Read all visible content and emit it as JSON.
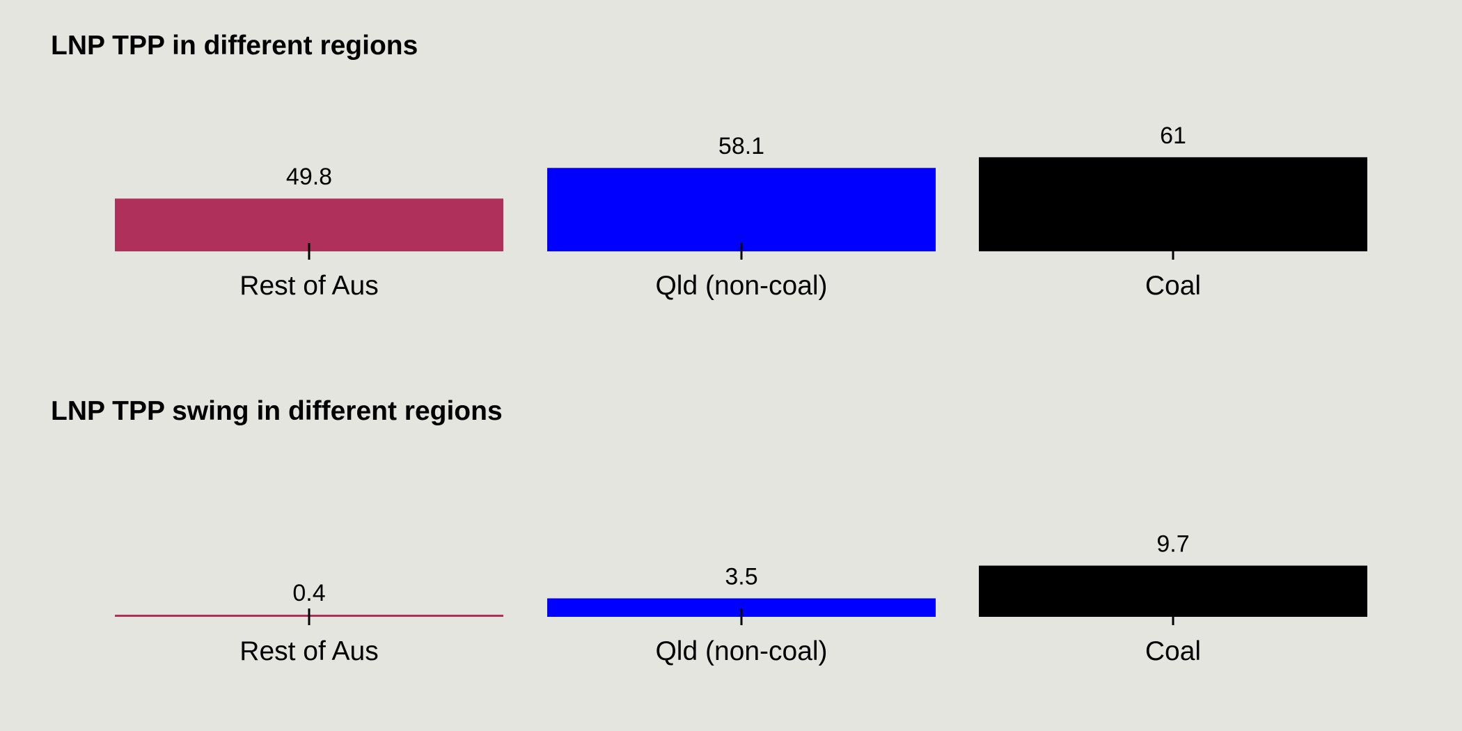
{
  "colors": {
    "background": "#e5e5df",
    "categories": [
      "#b0305c",
      "#0000ff",
      "#000000"
    ],
    "tick": "#000000"
  },
  "chart_data": [
    {
      "type": "bar",
      "title": "LNP TPP in different regions",
      "categories": [
        "Rest of Aus",
        "Qld (non-coal)",
        "Coal"
      ],
      "values": [
        49.8,
        58.1,
        61
      ],
      "value_labels": [
        "49.8",
        "58.1",
        "61"
      ],
      "baseline": 35.5,
      "xlabel": "",
      "ylabel": "",
      "grid": false,
      "legend": "none"
    },
    {
      "type": "bar",
      "title": "LNP TPP swing in different regions",
      "categories": [
        "Rest of Aus",
        "Qld (non-coal)",
        "Coal"
      ],
      "values": [
        0.4,
        3.5,
        9.7
      ],
      "value_labels": [
        "0.4",
        "3.5",
        "9.7"
      ],
      "baseline": 0,
      "xlabel": "",
      "ylabel": "",
      "grid": false,
      "legend": "none"
    }
  ]
}
